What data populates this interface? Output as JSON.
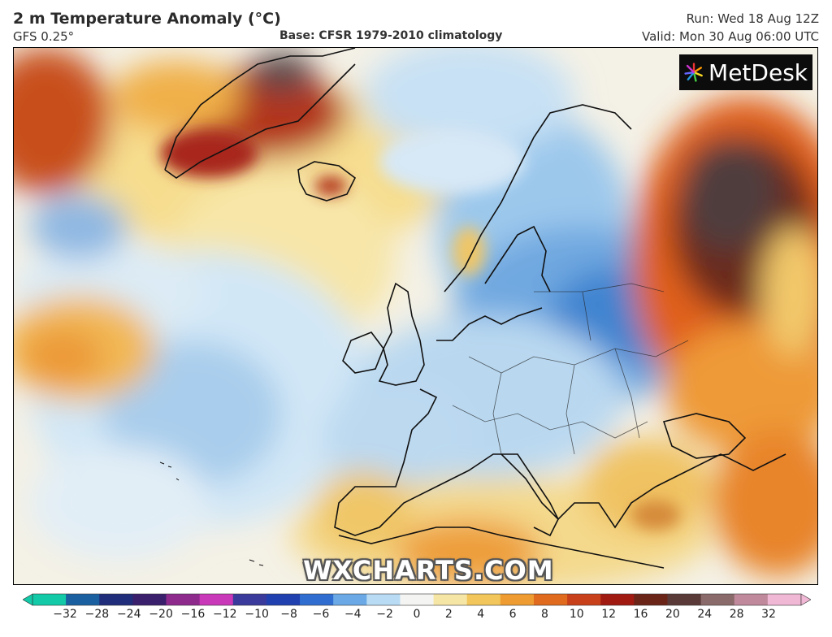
{
  "header": {
    "title": "2 m Temperature Anomaly (°C)",
    "subtitle": "GFS 0.25°",
    "base": "Base: CFSR 1979-2010 climatology",
    "run": "Run: Wed 18 Aug 12Z",
    "valid": "Valid: Mon 30 Aug 06:00 UTC"
  },
  "logo": {
    "text": "MetDesk",
    "icon": "metdesk-star-icon"
  },
  "watermark": "WXCHARTS.COM",
  "legend": {
    "ticks": [
      "−32",
      "−28",
      "−24",
      "−20",
      "−16",
      "−12",
      "−10",
      "−8",
      "−6",
      "−4",
      "−2",
      "0",
      "2",
      "4",
      "6",
      "8",
      "10",
      "12",
      "16",
      "20",
      "24",
      "28",
      "32"
    ],
    "colors": [
      "#12c9a8",
      "#1a5fa0",
      "#1f2d7a",
      "#3a1f6d",
      "#8e2a8c",
      "#c838b8",
      "#3a3a9c",
      "#2040b0",
      "#2f6ed0",
      "#6aa9e6",
      "#b9dcf4",
      "#f4f4f2",
      "#f6e6a6",
      "#f2c65a",
      "#ee9c32",
      "#e06a1e",
      "#c8401a",
      "#a01a12",
      "#6a2418",
      "#5a3a38",
      "#8a6a6a",
      "#c08a9c",
      "#f0b8d4"
    ]
  }
}
